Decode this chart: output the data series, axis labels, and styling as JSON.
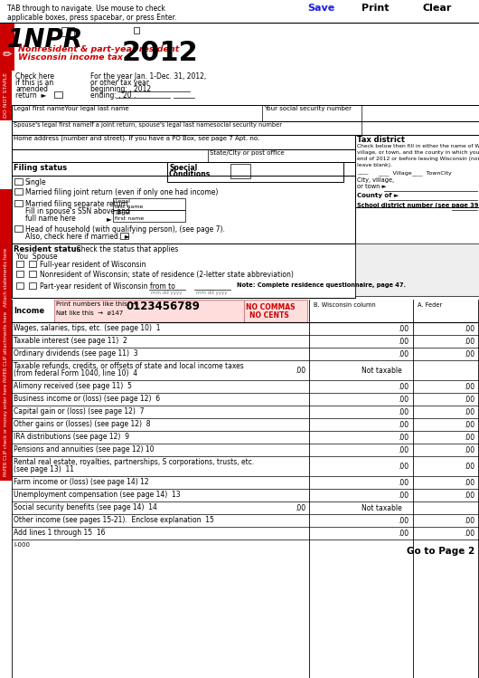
{
  "bg_color": "#ffffff",
  "red_color": "#cc0000",
  "blue_color": "#1a1aee",
  "pink_box_color": "#ffdddd",
  "income_lines": [
    {
      "num": "1",
      "text": "Wages, salaries, tips, etc. (see page 10)  1",
      "has_dot": false,
      "not_taxable": false
    },
    {
      "num": "2",
      "text": "Taxable interest (see page 11)  2",
      "has_dot": false,
      "not_taxable": false
    },
    {
      "num": "3",
      "text": "Ordinary dividends (see page 11)  3",
      "has_dot": false,
      "not_taxable": false
    },
    {
      "num": "4",
      "text": "Taxable refunds, credits, or offsets of state and local income taxes\n(from federal Form 1040, line 10)  4",
      "has_dot": true,
      "not_taxable": true
    },
    {
      "num": "5",
      "text": "Alimony received (see page 11)  5",
      "has_dot": false,
      "not_taxable": false
    },
    {
      "num": "6",
      "text": "Business income or (loss) (see page 12)  6",
      "has_dot": false,
      "not_taxable": false
    },
    {
      "num": "7",
      "text": "Capital gain or (loss) (see page 12)  7",
      "has_dot": false,
      "not_taxable": false
    },
    {
      "num": "8",
      "text": "Other gains or (losses) (see page 12)  8",
      "has_dot": false,
      "not_taxable": false
    },
    {
      "num": "9",
      "text": "IRA distributions (see page 12)  9",
      "has_dot": false,
      "not_taxable": false
    },
    {
      "num": "10",
      "text": "Pensions and annuities (see page 12) 10",
      "has_dot": false,
      "not_taxable": false
    },
    {
      "num": "11",
      "text": "Rental real estate, royalties, partnerships, S corporations, trusts, etc.\n(see page 13)  11",
      "has_dot": false,
      "not_taxable": false
    },
    {
      "num": "12",
      "text": "Farm income or (loss) (see page 14) 12",
      "has_dot": false,
      "not_taxable": false
    },
    {
      "num": "13",
      "text": "Unemployment compensation (see page 14)  13",
      "has_dot": false,
      "not_taxable": false
    },
    {
      "num": "14",
      "text": "Social security benefits (see page 14)  14",
      "has_dot": true,
      "not_taxable": true
    },
    {
      "num": "15",
      "text": "Other income (see pages 15-21).  Enclose explanation  15",
      "has_dot": false,
      "not_taxable": false
    },
    {
      "num": "16",
      "text": "Add lines 1 through 15  16",
      "has_dot": false,
      "not_taxable": false
    }
  ]
}
